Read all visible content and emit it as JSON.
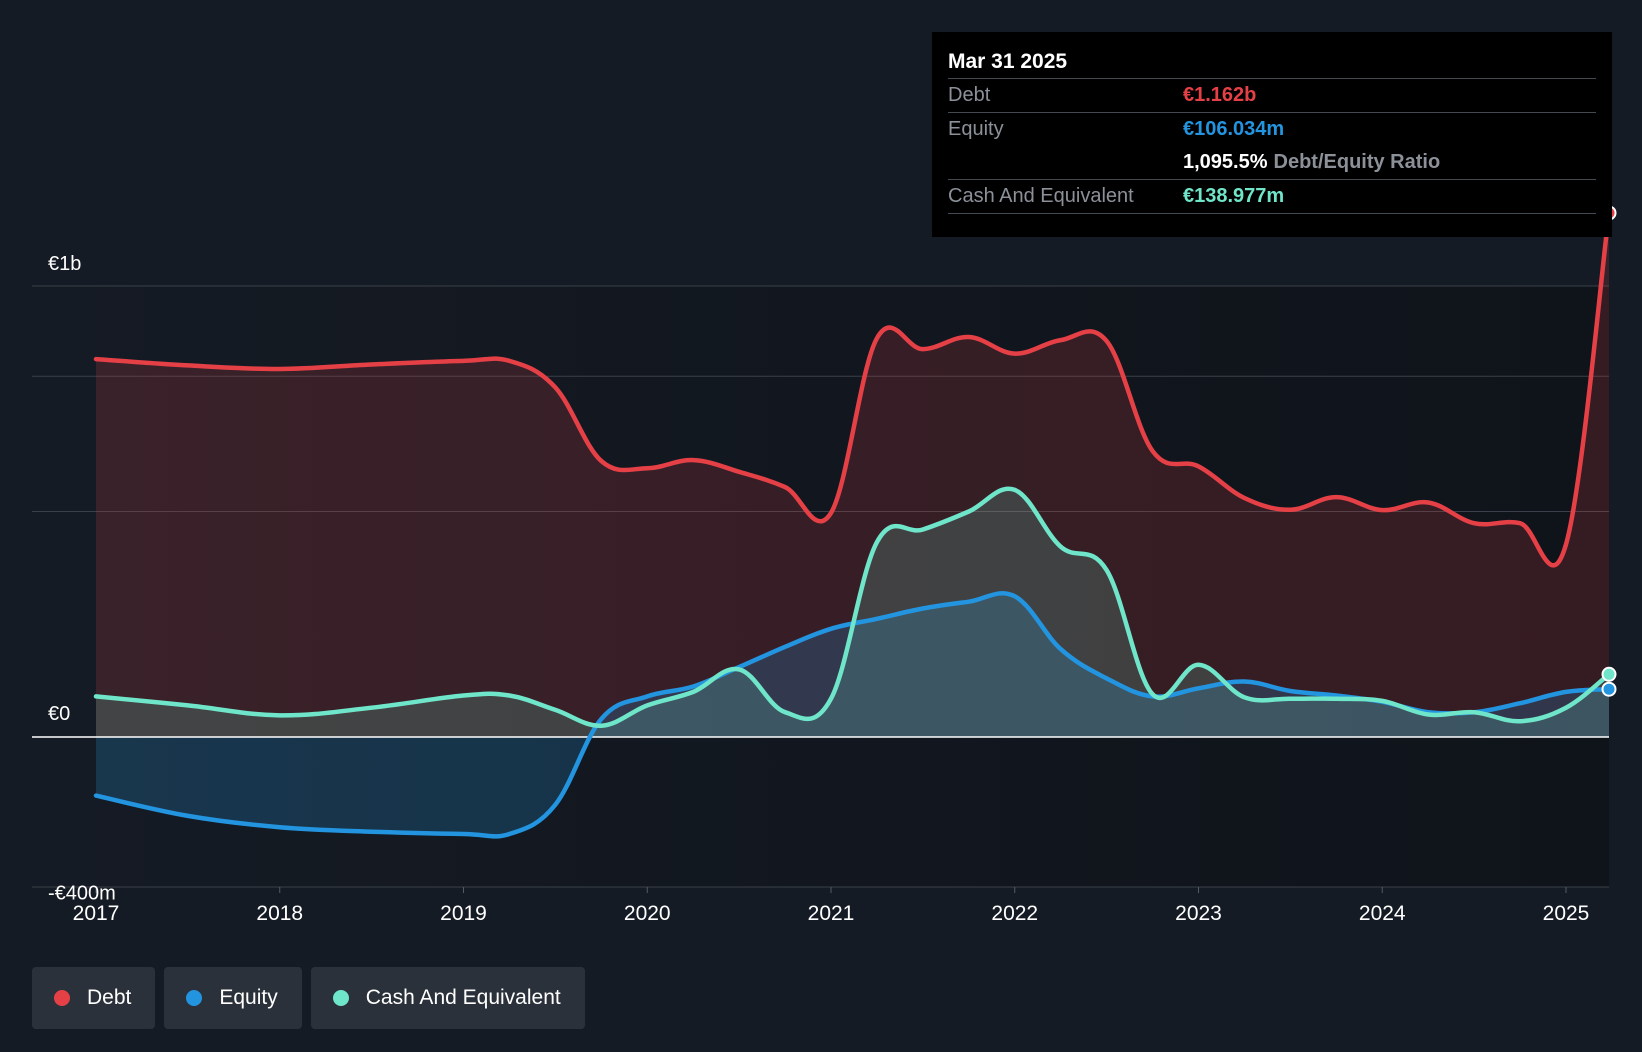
{
  "tooltip": {
    "date": "Mar 31 2025",
    "debt_label": "Debt",
    "debt_value": "€1.162b",
    "equity_label": "Equity",
    "equity_value": "€106.034m",
    "ratio_value": "1,095.5%",
    "ratio_label": "Debt/Equity Ratio",
    "cash_label": "Cash And Equivalent",
    "cash_value": "€138.977m"
  },
  "legend": {
    "debt": "Debt",
    "equity": "Equity",
    "cash": "Cash And Equivalent"
  },
  "colors": {
    "background": "#151b24",
    "debt": "#e64047",
    "equity": "#2394df",
    "cash": "#6fe5c9"
  },
  "chart_data": {
    "type": "line",
    "ylim": [
      -400,
      1200
    ],
    "x_range": [
      2016.65,
      2025.25
    ],
    "y_tick_labels": [
      {
        "value": 1000,
        "label": "€1b"
      },
      {
        "value": 0,
        "label": "€0"
      },
      {
        "value": -400,
        "label": "-€400m"
      }
    ],
    "gridlines": [
      1000,
      800,
      500
    ],
    "x_ticks": [
      {
        "value": 2017,
        "label": "2017"
      },
      {
        "value": 2018,
        "label": "2018"
      },
      {
        "value": 2019,
        "label": "2019"
      },
      {
        "value": 2020,
        "label": "2020"
      },
      {
        "value": 2021,
        "label": "2021"
      },
      {
        "value": 2022,
        "label": "2022"
      },
      {
        "value": 2023,
        "label": "2023"
      },
      {
        "value": 2024,
        "label": "2024"
      },
      {
        "value": 2025,
        "label": "2025"
      }
    ],
    "series": [
      {
        "name": "Debt",
        "color": "#e64047",
        "points": [
          [
            2017,
            838
          ],
          [
            2017.5,
            824
          ],
          [
            2018,
            816
          ],
          [
            2018.5,
            826
          ],
          [
            2019,
            834
          ],
          [
            2019.25,
            834
          ],
          [
            2019.5,
            775
          ],
          [
            2019.75,
            612
          ],
          [
            2020,
            596
          ],
          [
            2020.25,
            614
          ],
          [
            2020.5,
            588
          ],
          [
            2020.75,
            554
          ],
          [
            2021,
            497
          ],
          [
            2021.25,
            884
          ],
          [
            2021.5,
            860
          ],
          [
            2021.75,
            887
          ],
          [
            2022,
            850
          ],
          [
            2022.25,
            880
          ],
          [
            2022.5,
            878
          ],
          [
            2022.75,
            634
          ],
          [
            2023,
            600
          ],
          [
            2023.25,
            530
          ],
          [
            2023.5,
            504
          ],
          [
            2023.75,
            532
          ],
          [
            2024,
            503
          ],
          [
            2024.25,
            520
          ],
          [
            2024.5,
            474
          ],
          [
            2024.75,
            474
          ],
          [
            2025,
            427
          ],
          [
            2025.25,
            1162
          ]
        ]
      },
      {
        "name": "Equity",
        "color": "#2394df",
        "points": [
          [
            2017,
            -130
          ],
          [
            2017.5,
            -175
          ],
          [
            2018,
            -200
          ],
          [
            2018.5,
            -210
          ],
          [
            2019,
            -215
          ],
          [
            2019.25,
            -215
          ],
          [
            2019.5,
            -150
          ],
          [
            2019.75,
            40
          ],
          [
            2020,
            90
          ],
          [
            2020.25,
            112
          ],
          [
            2020.5,
            155
          ],
          [
            2020.75,
            200
          ],
          [
            2021,
            240
          ],
          [
            2021.25,
            262
          ],
          [
            2021.5,
            285
          ],
          [
            2021.75,
            300
          ],
          [
            2022,
            312
          ],
          [
            2022.25,
            195
          ],
          [
            2022.5,
            130
          ],
          [
            2022.75,
            90
          ],
          [
            2023,
            108
          ],
          [
            2023.25,
            123
          ],
          [
            2023.5,
            102
          ],
          [
            2023.75,
            92
          ],
          [
            2024,
            78
          ],
          [
            2024.25,
            55
          ],
          [
            2024.5,
            55
          ],
          [
            2024.75,
            75
          ],
          [
            2025,
            100
          ],
          [
            2025.25,
            106
          ]
        ]
      },
      {
        "name": "Cash And Equivalent",
        "color": "#6fe5c9",
        "points": [
          [
            2017,
            90
          ],
          [
            2017.5,
            70
          ],
          [
            2018,
            48
          ],
          [
            2018.5,
            65
          ],
          [
            2019,
            92
          ],
          [
            2019.25,
            92
          ],
          [
            2019.5,
            60
          ],
          [
            2019.75,
            25
          ],
          [
            2020,
            70
          ],
          [
            2020.25,
            100
          ],
          [
            2020.5,
            150
          ],
          [
            2020.75,
            55
          ],
          [
            2021,
            85
          ],
          [
            2021.25,
            432
          ],
          [
            2021.5,
            460
          ],
          [
            2021.75,
            500
          ],
          [
            2022,
            548
          ],
          [
            2022.25,
            422
          ],
          [
            2022.5,
            370
          ],
          [
            2022.75,
            95
          ],
          [
            2023,
            160
          ],
          [
            2023.25,
            88
          ],
          [
            2023.5,
            85
          ],
          [
            2023.75,
            85
          ],
          [
            2024,
            80
          ],
          [
            2024.25,
            50
          ],
          [
            2024.5,
            55
          ],
          [
            2024.75,
            35
          ],
          [
            2025,
            65
          ],
          [
            2025.25,
            139
          ]
        ]
      }
    ]
  }
}
